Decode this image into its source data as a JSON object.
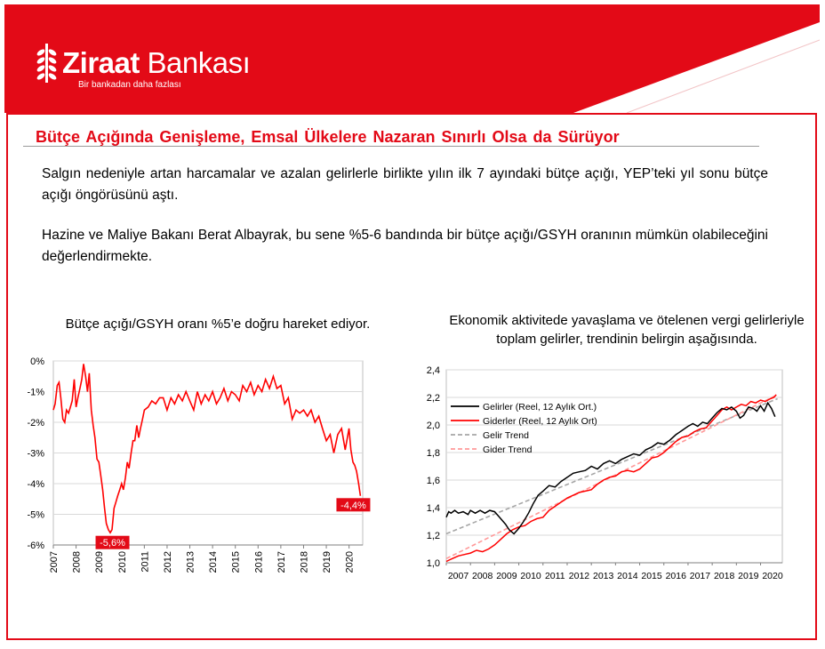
{
  "brand": {
    "name_bold": "Ziraat",
    "name_light": "Bankası",
    "tagline": "Bir bankadan daha fazlası",
    "color": "#e30a17"
  },
  "title": "Bütçe Açığında Genişleme, Emsal Ülkelere Nazaran Sınırlı Olsa da Sürüyor",
  "paragraphs": [
    "Salgın nedeniyle artan harcamalar ve azalan gelirlerle birlikte yılın ilk 7 ayındaki bütçe açığı, YEP’teki yıl sonu bütçe açığı öngörüsünü aştı.",
    "Hazine ve Maliye Bakanı Berat Albayrak, bu sene %5-6 bandında bir bütçe açığı/GSYH oranının mümkün olabileceğini değerlendirmekte."
  ],
  "chart_data": [
    {
      "type": "line",
      "title": "Bütçe açığı/GSYH oranı %5’e doğru hareket ediyor.",
      "xlabel": "",
      "ylabel": "",
      "x_tick_labels": [
        "2007",
        "2008",
        "2009",
        "2010",
        "2011",
        "2012",
        "2013",
        "2014",
        "2015",
        "2016",
        "2017",
        "2018",
        "2019",
        "2020"
      ],
      "y_tick_labels": [
        "0%",
        "-1%",
        "-2%",
        "-3%",
        "-4%",
        "-5%",
        "-6%"
      ],
      "ylim": [
        -6,
        0
      ],
      "xlim": [
        2007,
        2020.6
      ],
      "grid": true,
      "series": [
        {
          "color": "#ff0000",
          "x": [
            2007.0,
            2007.08,
            2007.17,
            2007.25,
            2007.33,
            2007.42,
            2007.5,
            2007.58,
            2007.67,
            2007.75,
            2007.83,
            2007.92,
            2008.0,
            2008.08,
            2008.17,
            2008.25,
            2008.33,
            2008.42,
            2008.5,
            2008.58,
            2008.67,
            2008.75,
            2008.83,
            2008.92,
            2009.0,
            2009.08,
            2009.17,
            2009.25,
            2009.33,
            2009.42,
            2009.5,
            2009.58,
            2009.67,
            2009.75,
            2009.83,
            2009.92,
            2010.0,
            2010.08,
            2010.17,
            2010.25,
            2010.33,
            2010.42,
            2010.5,
            2010.58,
            2010.67,
            2010.75,
            2010.83,
            2010.92,
            2011.0,
            2011.17,
            2011.33,
            2011.5,
            2011.67,
            2011.83,
            2012.0,
            2012.17,
            2012.33,
            2012.5,
            2012.67,
            2012.83,
            2013.0,
            2013.17,
            2013.33,
            2013.5,
            2013.67,
            2013.83,
            2014.0,
            2014.17,
            2014.33,
            2014.5,
            2014.67,
            2014.83,
            2015.0,
            2015.17,
            2015.33,
            2015.5,
            2015.67,
            2015.83,
            2016.0,
            2016.17,
            2016.33,
            2016.5,
            2016.67,
            2016.83,
            2017.0,
            2017.17,
            2017.33,
            2017.5,
            2017.67,
            2017.83,
            2018.0,
            2018.17,
            2018.33,
            2018.5,
            2018.67,
            2018.83,
            2019.0,
            2019.17,
            2019.33,
            2019.5,
            2019.67,
            2019.83,
            2020.0,
            2020.08,
            2020.17,
            2020.25,
            2020.33,
            2020.42,
            2020.5
          ],
          "y": [
            -1.6,
            -1.4,
            -0.8,
            -0.7,
            -1.2,
            -1.9,
            -2.0,
            -1.6,
            -1.7,
            -1.5,
            -1.3,
            -0.6,
            -1.5,
            -1.2,
            -0.9,
            -0.6,
            -0.1,
            -0.5,
            -1.0,
            -0.4,
            -1.6,
            -2.1,
            -2.5,
            -3.2,
            -3.3,
            -3.7,
            -4.2,
            -4.8,
            -5.3,
            -5.5,
            -5.6,
            -5.5,
            -4.8,
            -4.6,
            -4.4,
            -4.2,
            -4.0,
            -4.2,
            -3.8,
            -3.3,
            -3.5,
            -3.0,
            -2.6,
            -2.6,
            -2.1,
            -2.5,
            -2.2,
            -1.9,
            -1.6,
            -1.5,
            -1.3,
            -1.4,
            -1.2,
            -1.2,
            -1.6,
            -1.2,
            -1.4,
            -1.1,
            -1.3,
            -1.0,
            -1.3,
            -1.6,
            -1.0,
            -1.4,
            -1.1,
            -1.3,
            -1.0,
            -1.4,
            -1.2,
            -0.9,
            -1.3,
            -1.0,
            -1.1,
            -1.3,
            -0.8,
            -1.0,
            -0.7,
            -1.1,
            -0.8,
            -1.0,
            -0.6,
            -0.9,
            -0.5,
            -0.9,
            -0.8,
            -1.4,
            -1.2,
            -1.9,
            -1.6,
            -1.7,
            -1.6,
            -1.8,
            -1.6,
            -2.0,
            -1.8,
            -2.2,
            -2.6,
            -2.4,
            -3.0,
            -2.4,
            -2.2,
            -2.9,
            -2.2,
            -2.9,
            -3.3,
            -3.4,
            -3.6,
            -4.0,
            -4.4
          ]
        }
      ],
      "annotations": [
        {
          "text": "-5,6%",
          "x": 2009.6,
          "y": -5.6
        },
        {
          "text": "-4,4%",
          "x": 2020.5,
          "y": -4.4
        }
      ]
    },
    {
      "type": "line",
      "title": "Ekonomik aktivitede yavaşlama ve ötelenen vergi gelirleriyle toplam gelirler, trendinin belirgin aşağısında.",
      "xlabel": "",
      "ylabel": "",
      "x_tick_labels": [
        "2007",
        "2008",
        "2009",
        "2010",
        "2011",
        "2012",
        "2013",
        "2014",
        "2015",
        "2016",
        "2017",
        "2018",
        "2019",
        "2020"
      ],
      "y_tick_labels": [
        "1,0",
        "1,2",
        "1,4",
        "1,6",
        "1,8",
        "2,0",
        "2,2",
        "2,4"
      ],
      "ylim": [
        1.0,
        2.4
      ],
      "xlim": [
        2007,
        2020.9
      ],
      "grid": true,
      "legend": "top-left",
      "series": [
        {
          "name": "Gelirler (Reel, 12 Aylık Ort.)",
          "color": "#000000",
          "dash": false,
          "x": [
            2007.0,
            2007.1,
            2007.2,
            2007.35,
            2007.5,
            2007.7,
            2007.9,
            2008.0,
            2008.2,
            2008.4,
            2008.6,
            2008.8,
            2009.0,
            2009.15,
            2009.3,
            2009.45,
            2009.6,
            2009.8,
            2010.0,
            2010.2,
            2010.4,
            2010.6,
            2010.8,
            2011.0,
            2011.25,
            2011.5,
            2011.75,
            2012.0,
            2012.25,
            2012.5,
            2012.75,
            2013.0,
            2013.25,
            2013.5,
            2013.75,
            2014.0,
            2014.25,
            2014.5,
            2014.75,
            2015.0,
            2015.25,
            2015.5,
            2015.75,
            2016.0,
            2016.25,
            2016.5,
            2016.75,
            2017.0,
            2017.2,
            2017.4,
            2017.6,
            2017.8,
            2018.0,
            2018.2,
            2018.4,
            2018.6,
            2018.8,
            2019.0,
            2019.15,
            2019.3,
            2019.5,
            2019.7,
            2019.85,
            2020.0,
            2020.15,
            2020.3,
            2020.45,
            2020.6
          ],
          "y": [
            1.33,
            1.37,
            1.36,
            1.38,
            1.36,
            1.37,
            1.35,
            1.38,
            1.36,
            1.38,
            1.36,
            1.38,
            1.37,
            1.34,
            1.31,
            1.28,
            1.24,
            1.21,
            1.25,
            1.3,
            1.36,
            1.43,
            1.49,
            1.52,
            1.56,
            1.55,
            1.59,
            1.62,
            1.65,
            1.66,
            1.67,
            1.7,
            1.68,
            1.72,
            1.74,
            1.72,
            1.75,
            1.77,
            1.79,
            1.78,
            1.82,
            1.84,
            1.87,
            1.86,
            1.89,
            1.93,
            1.96,
            1.99,
            2.01,
            1.99,
            2.02,
            2.01,
            2.05,
            2.09,
            2.12,
            2.11,
            2.13,
            2.1,
            2.05,
            2.07,
            2.13,
            2.12,
            2.1,
            2.14,
            2.1,
            2.16,
            2.12,
            2.06
          ]
        },
        {
          "name": "Giderler (Reel, 12 Aylık Ort)",
          "color": "#ff0000",
          "dash": false,
          "x": [
            2007.0,
            2007.25,
            2007.5,
            2007.75,
            2008.0,
            2008.25,
            2008.5,
            2008.75,
            2009.0,
            2009.25,
            2009.5,
            2009.75,
            2010.0,
            2010.25,
            2010.5,
            2010.75,
            2011.0,
            2011.25,
            2011.5,
            2011.75,
            2012.0,
            2012.25,
            2012.5,
            2012.75,
            2013.0,
            2013.25,
            2013.5,
            2013.75,
            2014.0,
            2014.25,
            2014.5,
            2014.75,
            2015.0,
            2015.25,
            2015.5,
            2015.75,
            2016.0,
            2016.25,
            2016.5,
            2016.75,
            2017.0,
            2017.25,
            2017.5,
            2017.75,
            2018.0,
            2018.2,
            2018.4,
            2018.6,
            2018.8,
            2019.0,
            2019.2,
            2019.4,
            2019.6,
            2019.8,
            2020.0,
            2020.2,
            2020.4,
            2020.55,
            2020.65
          ],
          "y": [
            1.01,
            1.03,
            1.05,
            1.06,
            1.07,
            1.09,
            1.08,
            1.1,
            1.13,
            1.17,
            1.21,
            1.24,
            1.26,
            1.27,
            1.3,
            1.32,
            1.33,
            1.38,
            1.41,
            1.44,
            1.47,
            1.49,
            1.51,
            1.52,
            1.53,
            1.57,
            1.6,
            1.62,
            1.63,
            1.66,
            1.67,
            1.66,
            1.68,
            1.72,
            1.76,
            1.77,
            1.8,
            1.84,
            1.88,
            1.91,
            1.92,
            1.95,
            1.97,
            1.98,
            2.03,
            2.07,
            2.11,
            2.13,
            2.11,
            2.13,
            2.15,
            2.14,
            2.17,
            2.16,
            2.18,
            2.17,
            2.19,
            2.2,
            2.22
          ]
        },
        {
          "name": "Gelir Trend",
          "color": "#a6a6a6",
          "dash": true,
          "x": [
            2007.0,
            2020.7
          ],
          "y": [
            1.21,
            2.19
          ]
        },
        {
          "name": "Gider Trend",
          "color": "#ff9999",
          "dash": true,
          "x": [
            2007.0,
            2020.7
          ],
          "y": [
            1.03,
            2.22
          ]
        }
      ]
    }
  ]
}
